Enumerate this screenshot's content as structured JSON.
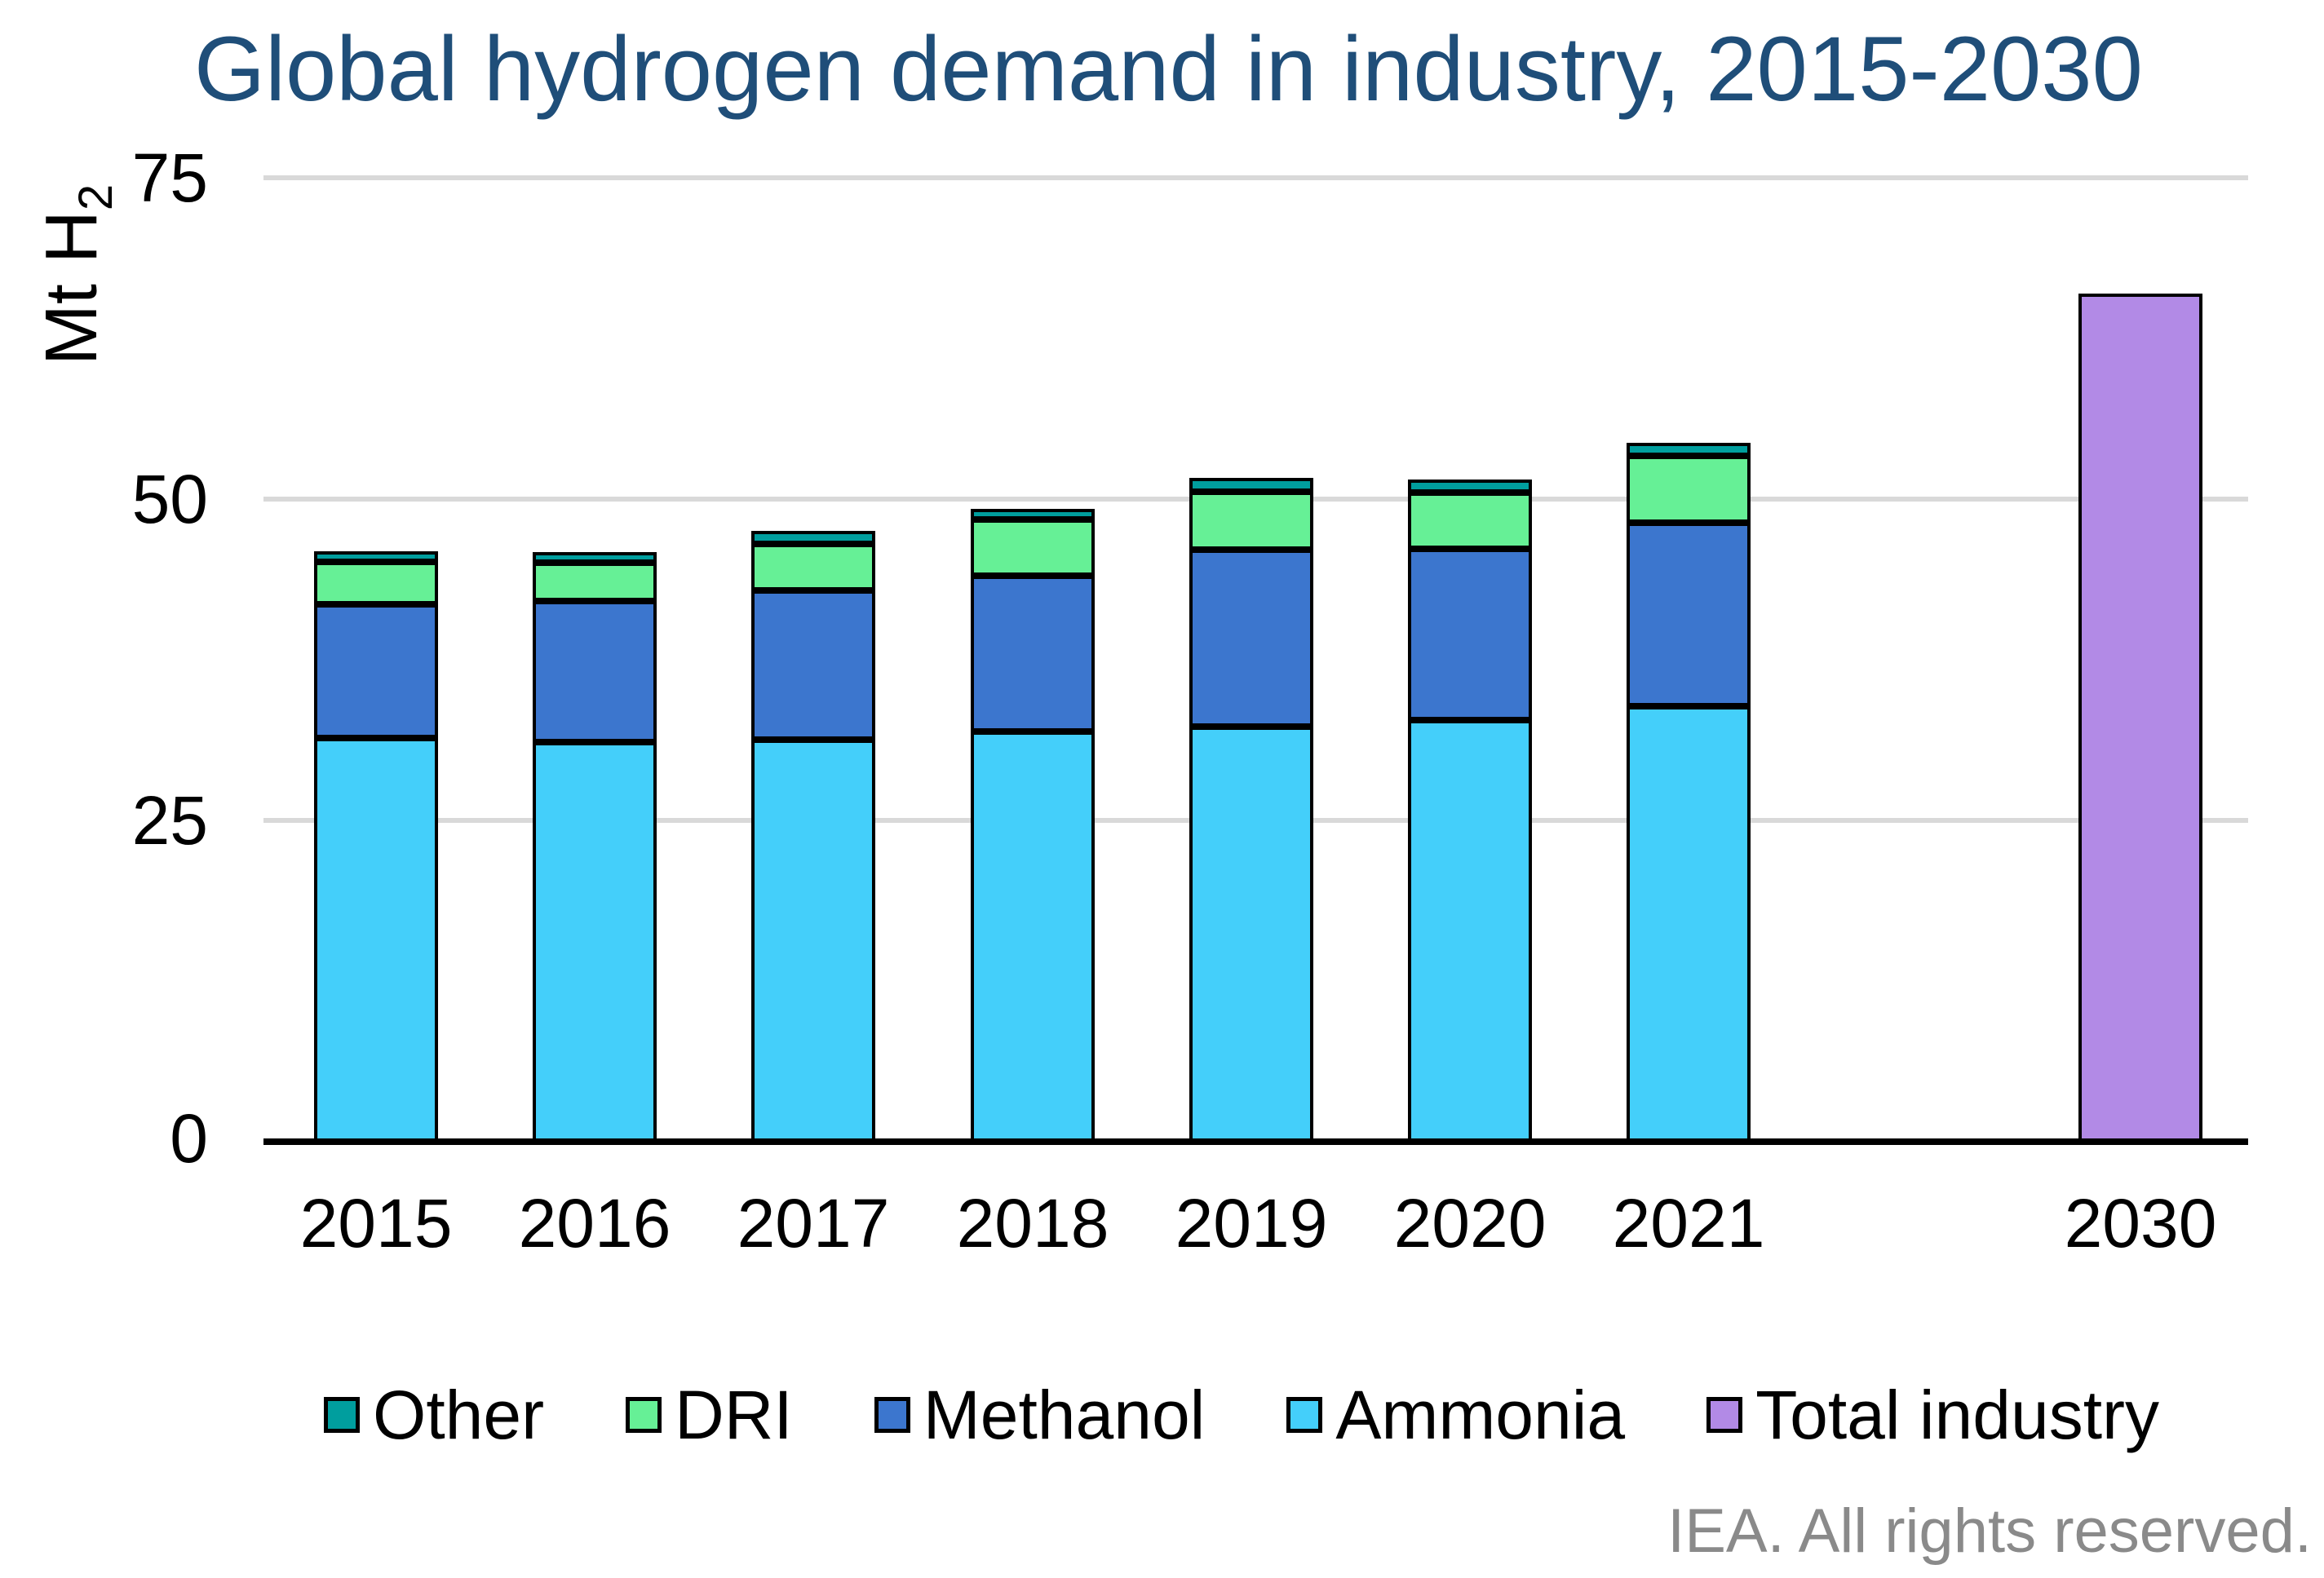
{
  "header": {
    "title": "Global hydrogen demand in industry, 2015-2030"
  },
  "footer": {
    "credit": "IEA. All rights reserved."
  },
  "chart_data": {
    "type": "bar",
    "stacked": true,
    "title": "Global hydrogen demand in industry, 2015-2030",
    "title_color": "#1F4E79",
    "xlabel": "",
    "ylabel": "Mt H₂",
    "ylabel_main": "Mt H",
    "ylabel_sub": "2",
    "ylim": [
      0,
      75
    ],
    "yticks": [
      0,
      25,
      50,
      75
    ],
    "ytick_labels_desc": [
      "75",
      "50",
      "25",
      "0"
    ],
    "grid": "horizontal",
    "gridline_color": "#D9D9D9",
    "legend_position": "bottom",
    "categories": [
      "2015",
      "2016",
      "2017",
      "2018",
      "2019",
      "2020",
      "2021",
      "2030"
    ],
    "series": [
      {
        "name": "Ammonia",
        "color": "#44CFFA",
        "values": [
          31.4,
          31.1,
          31.3,
          31.9,
          32.3,
          32.8,
          33.9,
          0
        ]
      },
      {
        "name": "Methanol",
        "color": "#3C76CE",
        "values": [
          10.4,
          11.0,
          11.6,
          12.1,
          13.8,
          13.3,
          14.3,
          0
        ]
      },
      {
        "name": "DRI",
        "color": "#66F096",
        "values": [
          3.3,
          3.0,
          3.6,
          4.4,
          4.5,
          4.4,
          5.2,
          0
        ]
      },
      {
        "name": "Other",
        "color": "#009E9E",
        "values": [
          0.8,
          0.8,
          1.0,
          0.8,
          1.1,
          1.0,
          1.0,
          0
        ]
      },
      {
        "name": "Total industry",
        "color": "#B28AE6",
        "values": [
          0,
          0,
          0,
          0,
          0,
          0,
          0,
          66
        ]
      }
    ],
    "totals": [
      45.9,
      45.9,
      47.5,
      49.2,
      51.7,
      51.5,
      54.4,
      66
    ],
    "legend_order": [
      "Other",
      "DRI",
      "Methanol",
      "Ammonia",
      "Total industry"
    ]
  }
}
